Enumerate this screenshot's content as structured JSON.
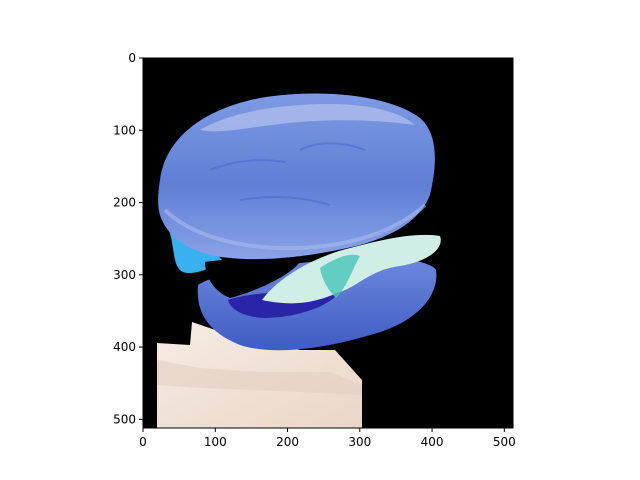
{
  "image_axes": {
    "x_ticks": [
      0,
      100,
      200,
      300,
      400,
      500
    ],
    "y_ticks": [
      0,
      100,
      200,
      300,
      400,
      500
    ],
    "x_range": [
      0,
      512
    ],
    "y_range": [
      0,
      512
    ],
    "y_inverted": true
  },
  "image": {
    "subject": "burger",
    "colors": {
      "background": "#000000",
      "bun_top": "#5f7fd6",
      "bun_highlight": "#9bb0ea",
      "bun_bottom": "#4a67c9",
      "filling_cyan": "#3bb0f0",
      "lettuce": "#cfeee6",
      "inner_dark": "#2a25a8",
      "plate": "#f3e6dc"
    }
  }
}
